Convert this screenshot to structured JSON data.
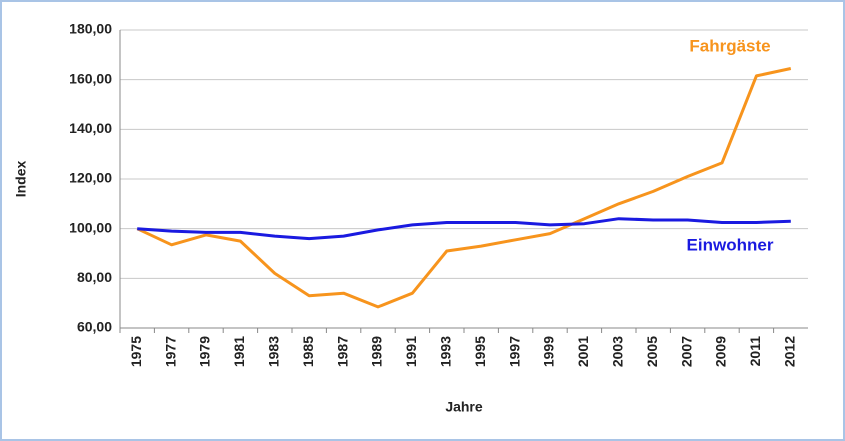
{
  "chart_data": {
    "type": "line",
    "x_label": "Jahre",
    "y_label": "Index",
    "categories": [
      "1975",
      "1977",
      "1979",
      "1981",
      "1983",
      "1985",
      "1987",
      "1989",
      "1991",
      "1993",
      "1995",
      "1997",
      "1999",
      "2001",
      "2003",
      "2005",
      "2007",
      "2009",
      "2011",
      "2012"
    ],
    "series": [
      {
        "name": "Fahrgäste",
        "color": "#f7941d",
        "values": [
          100,
          93.5,
          97.5,
          95,
          82,
          73,
          74,
          68.5,
          74,
          91,
          93,
          95.5,
          98,
          104,
          110,
          115,
          121,
          126.5,
          161.5,
          164.5
        ]
      },
      {
        "name": "Einwohner",
        "color": "#1a1ae0",
        "values": [
          100,
          99,
          98.5,
          98.5,
          97,
          96,
          97,
          99.5,
          101.5,
          102.5,
          102.5,
          102.5,
          101.5,
          102,
          104,
          103.5,
          103.5,
          102.5,
          102.5,
          103
        ]
      }
    ],
    "ylim": [
      60,
      180
    ],
    "yticks": [
      {
        "value": 60,
        "label": "60,00"
      },
      {
        "value": 80,
        "label": "80,00"
      },
      {
        "value": 100,
        "label": "100,00"
      },
      {
        "value": 120,
        "label": "120,00"
      },
      {
        "value": 140,
        "label": "140,00"
      },
      {
        "value": 160,
        "label": "160,00"
      },
      {
        "value": 180,
        "label": "180,00"
      }
    ],
    "grid": true
  }
}
